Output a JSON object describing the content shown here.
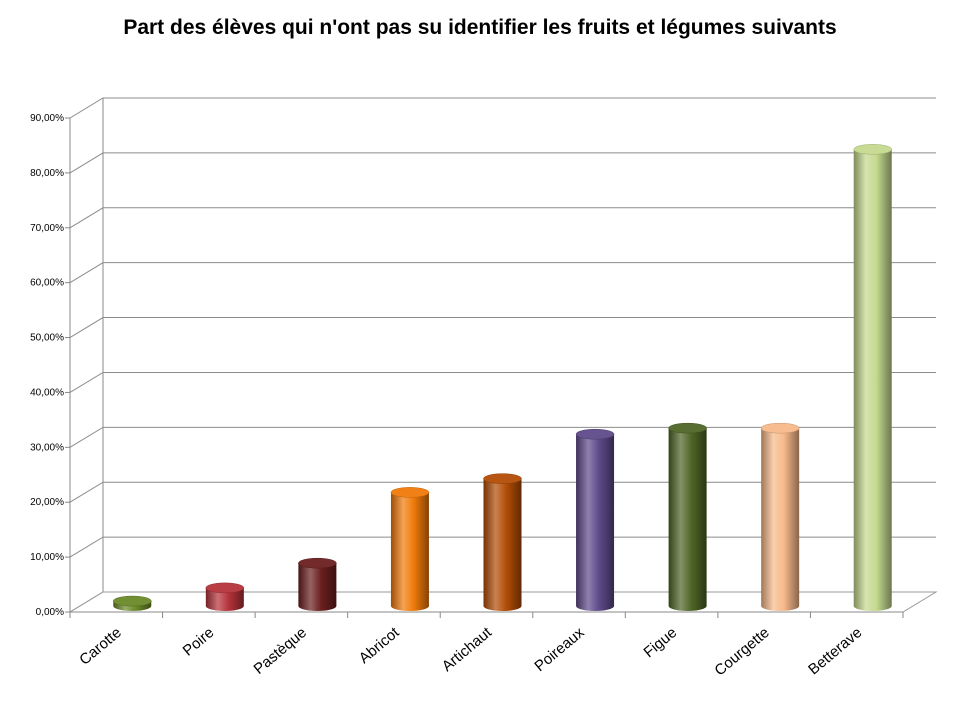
{
  "chart_data": {
    "type": "bar",
    "title": "Part des élèves qui n'ont pas su identifier les fruits et légumes suivants",
    "xlabel": "",
    "ylabel": "",
    "ylim": [
      0,
      90
    ],
    "yticks": [
      "0,00%",
      "10,00%",
      "20,00%",
      "30,00%",
      "40,00%",
      "50,00%",
      "60,00%",
      "70,00%",
      "80,00%",
      "90,00%"
    ],
    "grid": true,
    "categories": [
      "Carotte",
      "Poire",
      "Pastèque",
      "Abricot",
      "Artichaut",
      "Poireaux",
      "Figue",
      "Courgette",
      "Betterave"
    ],
    "values": [
      0.9,
      3.3,
      7.8,
      20.7,
      23.2,
      31.3,
      32.4,
      32.4,
      83.2
    ],
    "colors": [
      "#6b8a28",
      "#b5333a",
      "#6b1f1f",
      "#f07a0a",
      "#b24d06",
      "#5e4a8a",
      "#4f6526",
      "#f7b98a",
      "#c4d98e"
    ]
  }
}
